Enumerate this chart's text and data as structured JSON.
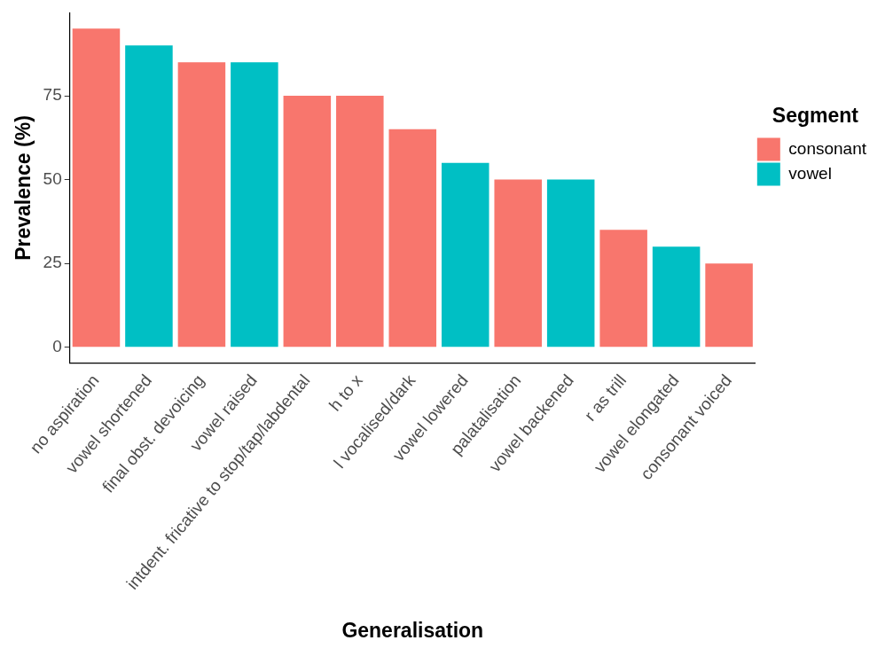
{
  "chart_data": {
    "type": "bar",
    "xlabel": "Generalisation",
    "ylabel": "Prevalence (%)",
    "legend_title": "Segment",
    "legend": "right",
    "grid": false,
    "categories": [
      "no aspiration",
      "vowel shortened",
      "final obst. devoicing",
      "vowel raised",
      "intdent. fricative to stop/tap/labdental",
      "h to x",
      "l vocalised/dark",
      "vowel lowered",
      "palatalisation",
      "vowel backened",
      "r as trill",
      "vowel elongated",
      "consonant voiced"
    ],
    "ylim": [
      -4.75,
      99.75
    ],
    "yticks": [
      0,
      25,
      50,
      75
    ],
    "series": [
      {
        "name": "consonant",
        "color": "#f8766d",
        "values": [
          95,
          null,
          85,
          null,
          75,
          75,
          65,
          null,
          50,
          null,
          35,
          null,
          25
        ]
      },
      {
        "name": "vowel",
        "color": "#00bfc4",
        "values": [
          null,
          90,
          null,
          85,
          null,
          null,
          null,
          55,
          null,
          50,
          null,
          30,
          null
        ]
      }
    ]
  }
}
